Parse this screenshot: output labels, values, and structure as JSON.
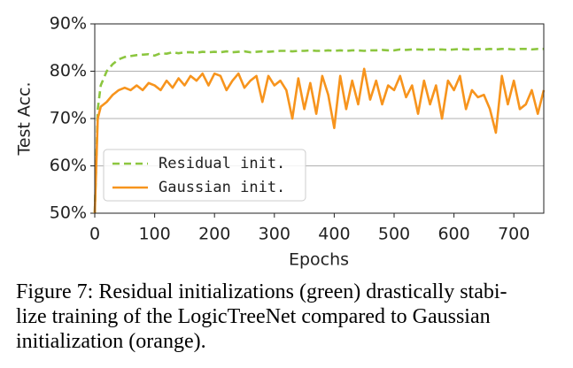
{
  "chart_data": {
    "type": "line",
    "xlabel": "Epochs",
    "ylabel": "Test Acc.",
    "x": [
      0,
      5,
      10,
      20,
      30,
      40,
      50,
      60,
      70,
      80,
      90,
      100,
      110,
      120,
      130,
      140,
      150,
      160,
      170,
      180,
      190,
      200,
      210,
      220,
      230,
      240,
      250,
      260,
      270,
      280,
      290,
      300,
      310,
      320,
      330,
      340,
      350,
      360,
      370,
      380,
      390,
      400,
      410,
      420,
      430,
      440,
      450,
      460,
      470,
      480,
      490,
      500,
      510,
      520,
      530,
      540,
      550,
      560,
      570,
      580,
      590,
      600,
      610,
      620,
      630,
      640,
      650,
      660,
      670,
      680,
      690,
      700,
      710,
      720,
      730,
      740,
      750
    ],
    "series": [
      {
        "name": "Residual init.",
        "color": "#8cc63f",
        "dash": true,
        "values": [
          50,
          72,
          77,
          80,
          81.5,
          82.5,
          83,
          83.2,
          83.4,
          83.5,
          83.6,
          83.3,
          83.8,
          83.7,
          84,
          83.8,
          84,
          84,
          83.9,
          84.1,
          84,
          84.1,
          84,
          84.2,
          84,
          84.1,
          84.2,
          84,
          84.1,
          84.2,
          84.1,
          84.2,
          84.3,
          84.3,
          84.2,
          84.3,
          84.3,
          84.4,
          84.3,
          84.3,
          84.4,
          84.3,
          84.4,
          84.3,
          84.4,
          84.4,
          84.3,
          84.4,
          84.4,
          84.5,
          84.4,
          84.4,
          84.6,
          84.5,
          84.6,
          84.6,
          84.5,
          84.6,
          84.6,
          84.6,
          84.5,
          84.6,
          84.7,
          84.6,
          84.6,
          84.7,
          84.6,
          84.7,
          84.6,
          84.7,
          84.7,
          84.6,
          84.7,
          84.7,
          84.6,
          84.7,
          84.7
        ]
      },
      {
        "name": "Gaussian init.",
        "color": "#f7941d",
        "dash": false,
        "values": [
          50,
          70,
          72.5,
          73.5,
          75,
          76,
          76.5,
          76,
          77,
          76,
          77.5,
          77,
          76,
          78,
          76.5,
          78.5,
          77,
          79,
          78,
          79.5,
          77,
          79.5,
          79,
          76,
          78,
          79.5,
          76.5,
          78,
          79,
          73.5,
          79,
          77,
          78,
          76,
          70,
          78.5,
          72,
          77.5,
          71,
          79,
          75,
          68,
          79,
          72,
          78,
          73,
          80.5,
          74,
          78,
          73,
          77,
          76,
          79,
          74.5,
          77,
          71,
          78,
          73,
          77,
          70,
          78,
          76,
          79,
          72,
          76,
          74.5,
          75,
          72,
          67,
          79,
          73,
          78,
          72,
          73,
          76,
          71,
          76
        ]
      }
    ],
    "xlim": [
      0,
      750
    ],
    "xticks": [
      0,
      100,
      200,
      300,
      400,
      500,
      600,
      700
    ],
    "ylim": [
      50,
      90
    ],
    "yticks": [
      {
        "value": 50,
        "label": "50%"
      },
      {
        "value": 60,
        "label": "60%"
      },
      {
        "value": 70,
        "label": "70%"
      },
      {
        "value": 80,
        "label": "80%"
      },
      {
        "value": 90,
        "label": "90%"
      }
    ],
    "grid": true,
    "legend": "lower left"
  },
  "caption": {
    "lines": [
      "Figure 7: Residual initializations (green) drastically stabi-",
      "lize training of the LogicTreeNet compared to Gaussian",
      "initialization (orange)."
    ]
  }
}
